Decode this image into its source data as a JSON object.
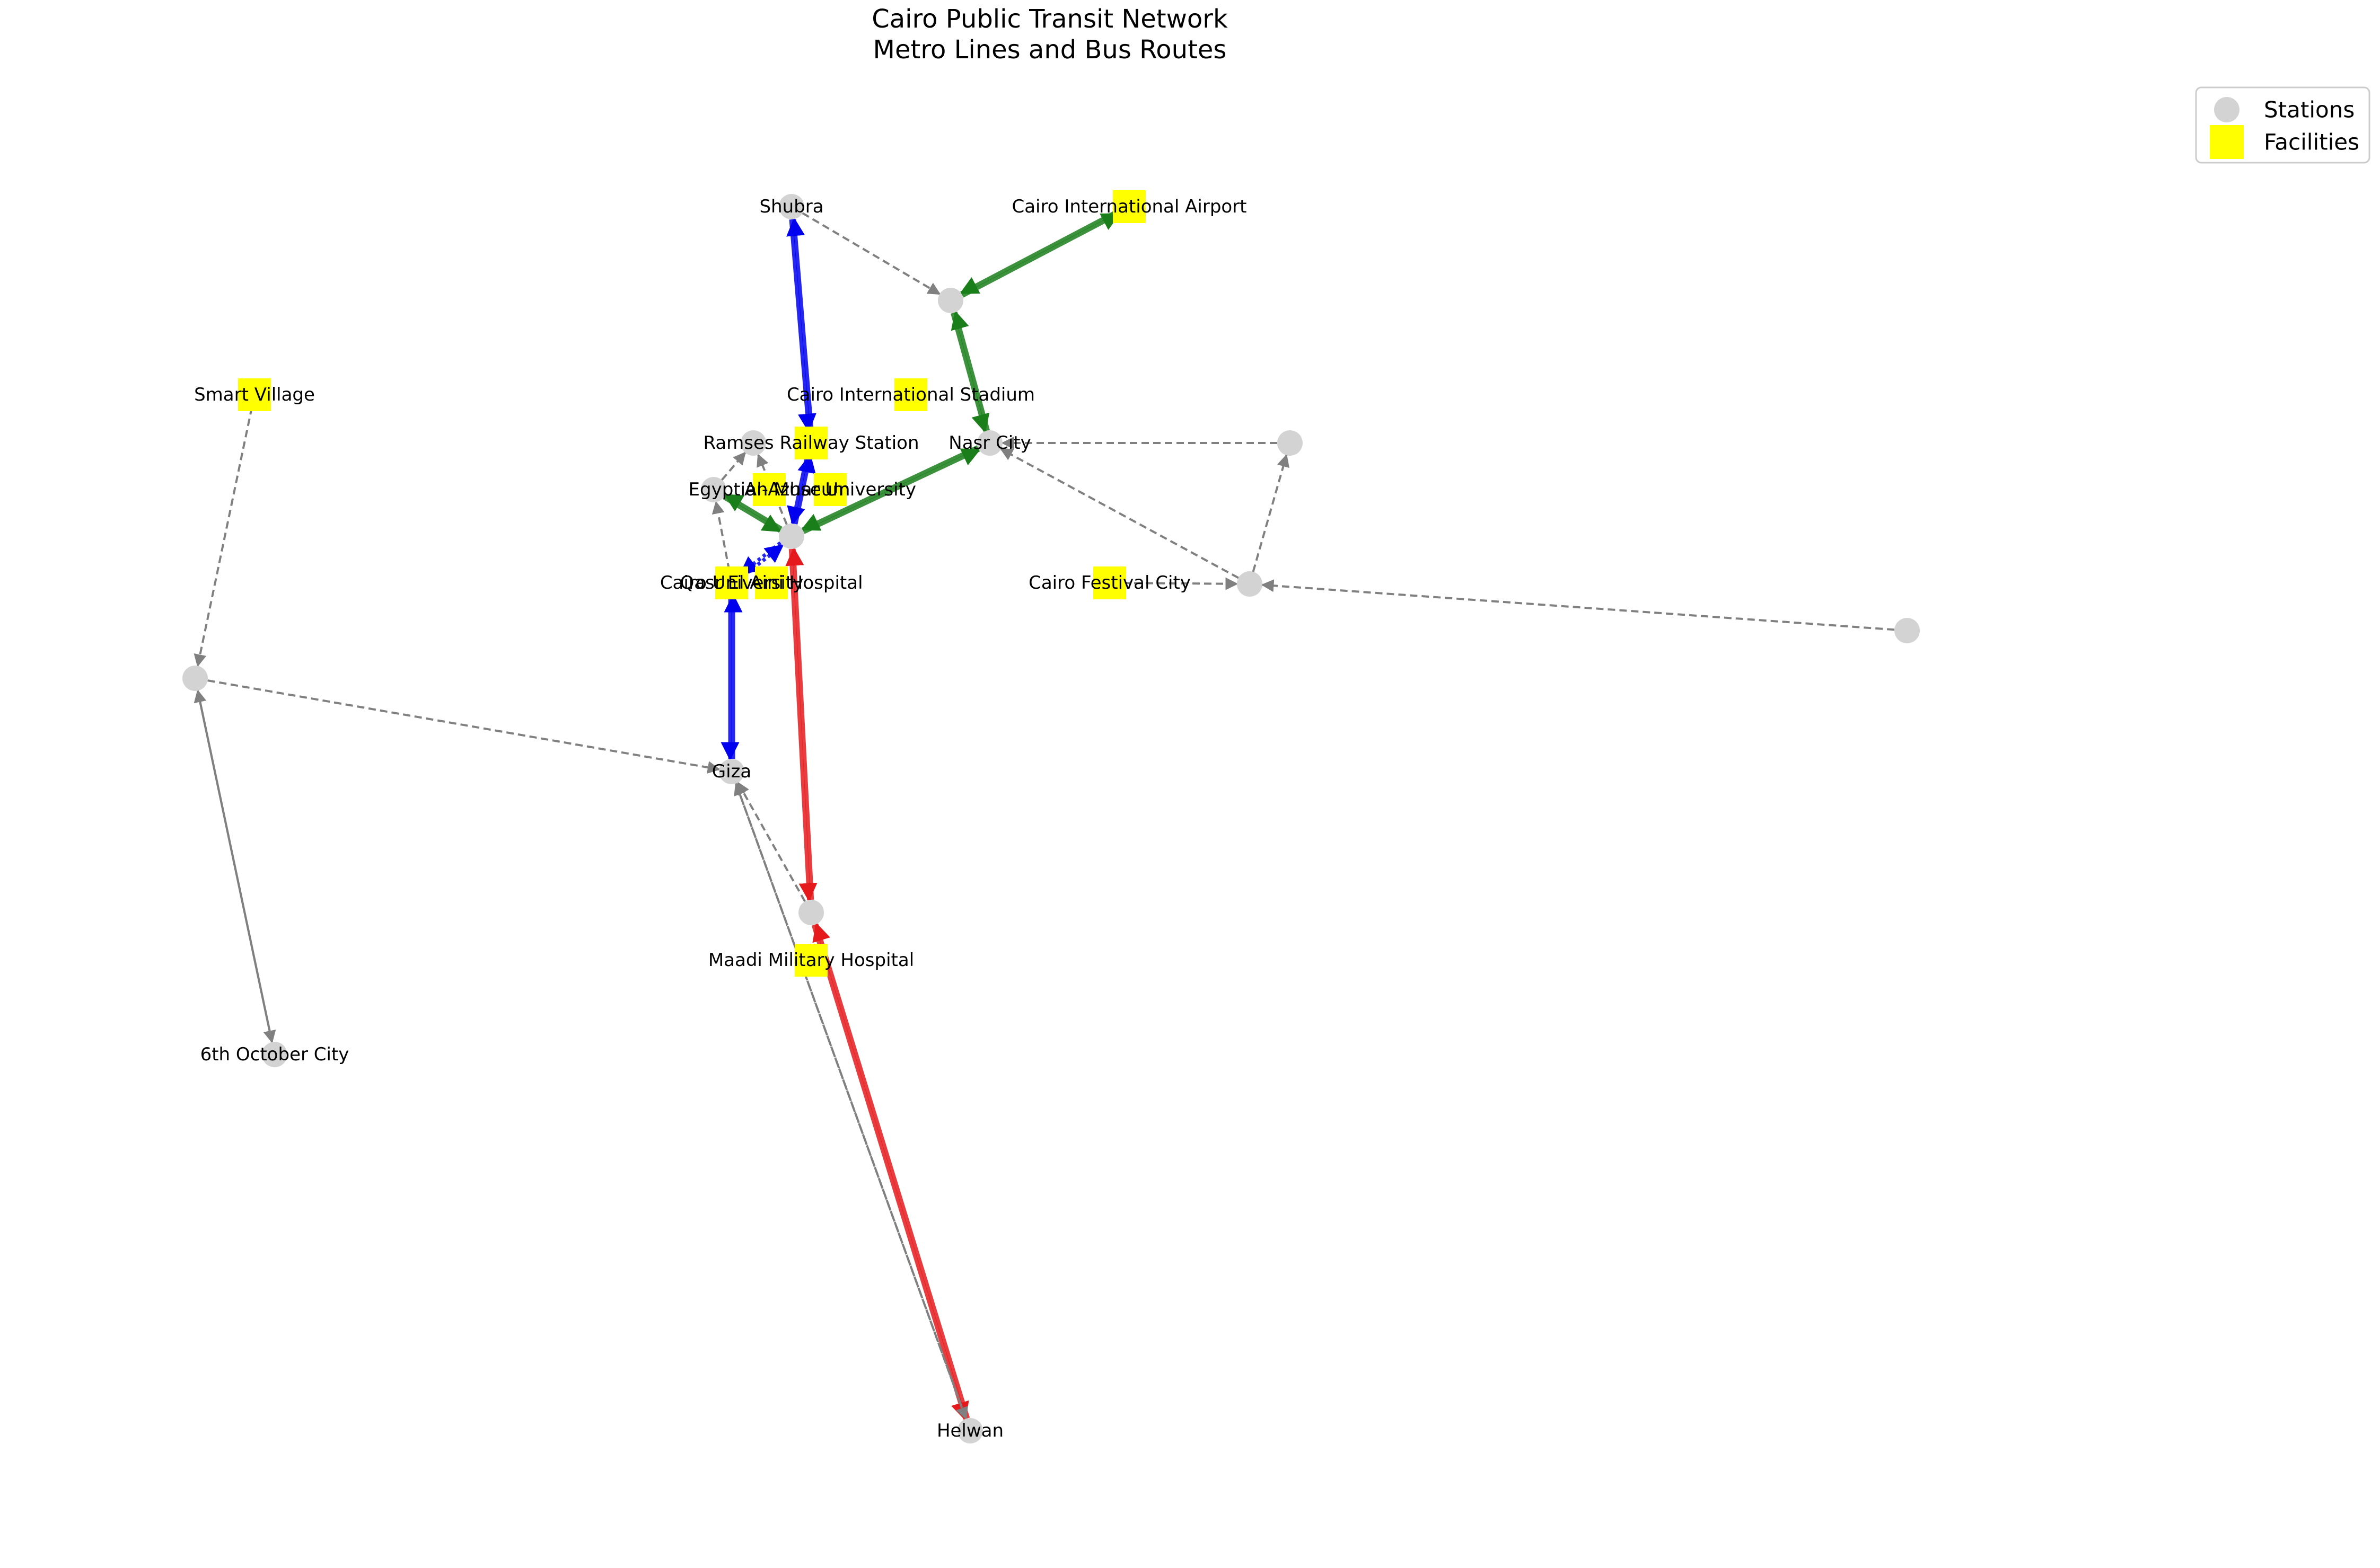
{
  "title": {
    "line1": "Cairo Public Transit Network",
    "line2": "Metro Lines and Bus Routes"
  },
  "colors": {
    "station": "#d3d3d3",
    "facility": "#ffff00",
    "metro_line_1": "#e41a1c",
    "metro_line_2": "#0000ee",
    "metro_line_3": "#1a7f1a",
    "bus": "#808080"
  },
  "legend": {
    "stations": "Stations",
    "facilities": "Facilities"
  },
  "nodes": [
    {
      "id": "shubra",
      "label": "Shubra",
      "kind": "station"
    },
    {
      "id": "n_shubra_east",
      "label": "",
      "kind": "station"
    },
    {
      "id": "airport",
      "label": "Cairo International Airport",
      "kind": "facility"
    },
    {
      "id": "smart_village",
      "label": "Smart Village",
      "kind": "facility"
    },
    {
      "id": "stadium",
      "label": "Cairo International Stadium",
      "kind": "facility"
    },
    {
      "id": "ramses_node",
      "label": "",
      "kind": "station"
    },
    {
      "id": "ramses",
      "label": "Ramses Railway Station",
      "kind": "facility"
    },
    {
      "id": "nasr_city",
      "label": "Nasr City",
      "kind": "station"
    },
    {
      "id": "n_east",
      "label": "",
      "kind": "station"
    },
    {
      "id": "egypt_node",
      "label": "",
      "kind": "station"
    },
    {
      "id": "egyptian_museum",
      "label": "Egyptian Museum",
      "kind": "facility"
    },
    {
      "id": "al_azhar",
      "label": "Al-Azhar University",
      "kind": "facility"
    },
    {
      "id": "center",
      "label": "",
      "kind": "station"
    },
    {
      "id": "cairo_university",
      "label": "Cairo University",
      "kind": "facility"
    },
    {
      "id": "qasr_el_aini",
      "label": "Qasr El Aini Hospital",
      "kind": "facility"
    },
    {
      "id": "festival_city",
      "label": "Cairo Festival City",
      "kind": "facility"
    },
    {
      "id": "n_festival",
      "label": "",
      "kind": "station"
    },
    {
      "id": "n_far_east",
      "label": "",
      "kind": "station"
    },
    {
      "id": "n_west",
      "label": "",
      "kind": "station"
    },
    {
      "id": "giza",
      "label": "Giza",
      "kind": "station"
    },
    {
      "id": "maadi_node",
      "label": "",
      "kind": "station"
    },
    {
      "id": "maadi_hospital",
      "label": "Maadi Military Hospital",
      "kind": "facility"
    },
    {
      "id": "october",
      "label": "6th October City",
      "kind": "station"
    },
    {
      "id": "helwan",
      "label": "Helwan",
      "kind": "station"
    }
  ],
  "edges": [
    {
      "from": "shubra",
      "to": "ramses",
      "line": "metro_line_2",
      "dashed": false
    },
    {
      "from": "ramses",
      "to": "center",
      "line": "metro_line_2",
      "dashed": false
    },
    {
      "from": "center",
      "to": "ramses",
      "line": "metro_line_2",
      "dashed": false
    },
    {
      "from": "ramses",
      "to": "shubra",
      "line": "metro_line_2",
      "dashed": false
    },
    {
      "from": "center",
      "to": "cairo_university",
      "line": "metro_line_2",
      "dashed": true
    },
    {
      "from": "cairo_university",
      "to": "center",
      "line": "metro_line_2",
      "dashed": true
    },
    {
      "from": "cairo_university",
      "to": "giza",
      "line": "metro_line_2",
      "dashed": false
    },
    {
      "from": "giza",
      "to": "cairo_university",
      "line": "metro_line_2",
      "dashed": false
    },
    {
      "from": "center",
      "to": "maadi_node",
      "line": "metro_line_1",
      "dashed": false
    },
    {
      "from": "maadi_node",
      "to": "center",
      "line": "metro_line_1",
      "dashed": false
    },
    {
      "from": "maadi_node",
      "to": "helwan",
      "line": "metro_line_1",
      "dashed": false
    },
    {
      "from": "helwan",
      "to": "maadi_node",
      "line": "metro_line_1",
      "dashed": false
    },
    {
      "from": "airport",
      "to": "n_shubra_east",
      "line": "metro_line_3",
      "dashed": false
    },
    {
      "from": "n_shubra_east",
      "to": "airport",
      "line": "metro_line_3",
      "dashed": false
    },
    {
      "from": "n_shubra_east",
      "to": "nasr_city",
      "line": "metro_line_3",
      "dashed": false
    },
    {
      "from": "nasr_city",
      "to": "n_shubra_east",
      "line": "metro_line_3",
      "dashed": false
    },
    {
      "from": "nasr_city",
      "to": "center",
      "line": "metro_line_3",
      "dashed": false
    },
    {
      "from": "center",
      "to": "nasr_city",
      "line": "metro_line_3",
      "dashed": false
    },
    {
      "from": "center",
      "to": "egypt_node",
      "line": "metro_line_3",
      "dashed": false
    },
    {
      "from": "egypt_node",
      "to": "center",
      "line": "metro_line_3",
      "dashed": false
    },
    {
      "from": "shubra",
      "to": "n_shubra_east",
      "line": "bus",
      "dashed": true
    },
    {
      "from": "smart_village",
      "to": "n_west",
      "line": "bus",
      "dashed": true
    },
    {
      "from": "n_west",
      "to": "giza",
      "line": "bus",
      "dashed": true
    },
    {
      "from": "n_west",
      "to": "october",
      "line": "bus",
      "dashed": false
    },
    {
      "from": "october",
      "to": "n_west",
      "line": "bus",
      "dashed": false
    },
    {
      "from": "n_east",
      "to": "nasr_city",
      "line": "bus",
      "dashed": true
    },
    {
      "from": "n_festival",
      "to": "nasr_city",
      "line": "bus",
      "dashed": true
    },
    {
      "from": "n_festival",
      "to": "n_east",
      "line": "bus",
      "dashed": true
    },
    {
      "from": "festival_city",
      "to": "n_festival",
      "line": "bus",
      "dashed": true
    },
    {
      "from": "n_far_east",
      "to": "n_festival",
      "line": "bus",
      "dashed": true
    },
    {
      "from": "egypt_node",
      "to": "ramses_node",
      "line": "bus",
      "dashed": true
    },
    {
      "from": "center",
      "to": "ramses_node",
      "line": "bus",
      "dashed": true
    },
    {
      "from": "cairo_university",
      "to": "egypt_node",
      "line": "bus",
      "dashed": true
    },
    {
      "from": "maadi_node",
      "to": "giza",
      "line": "bus",
      "dashed": true
    },
    {
      "from": "helwan",
      "to": "giza",
      "line": "bus",
      "dashed": true
    },
    {
      "from": "giza",
      "to": "helwan",
      "line": "bus",
      "dashed": true
    }
  ]
}
